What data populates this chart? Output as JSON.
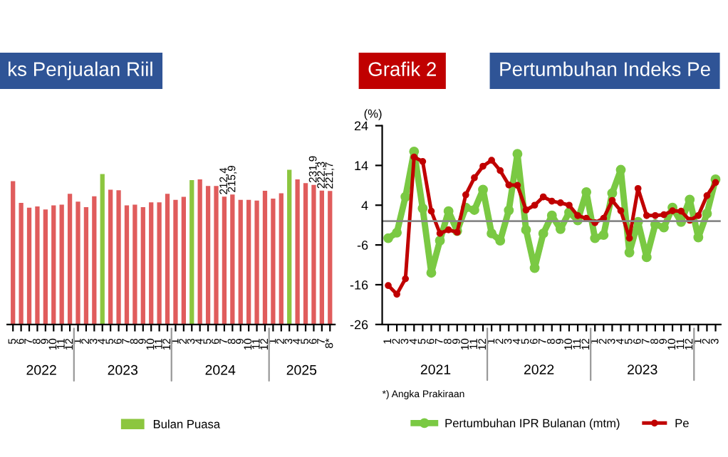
{
  "chart_data": [
    {
      "type": "bar",
      "title": "ks Penjualan Riil",
      "categories": [
        "5",
        "6",
        "7",
        "8",
        "9",
        "10",
        "11",
        "12",
        "1",
        "2",
        "3",
        "4",
        "5",
        "6",
        "7",
        "8",
        "9",
        "10",
        "11",
        "12",
        "1",
        "2",
        "3",
        "4",
        "5",
        "6",
        "7",
        "8",
        "9",
        "10",
        "11",
        "12",
        "1",
        "2",
        "3",
        "4",
        "5",
        "6",
        "7",
        "8*"
      ],
      "series": [
        {
          "color": "#e05c5c",
          "values": [
            238,
            202,
            194,
            196,
            191,
            198,
            199,
            217,
            204,
            195,
            213,
            null,
            224,
            223,
            198,
            199,
            195,
            203,
            203,
            217,
            207,
            212,
            null,
            241,
            230,
            230,
            212.4,
            215.9,
            207,
            207,
            206,
            222,
            209,
            218,
            null,
            241,
            235,
            231.9,
            222.3,
            221.7
          ],
          "value_labels": [
            null,
            null,
            null,
            null,
            null,
            null,
            null,
            null,
            null,
            null,
            null,
            null,
            null,
            null,
            null,
            null,
            null,
            null,
            null,
            null,
            null,
            null,
            null,
            null,
            null,
            null,
            "212,4",
            "215,9",
            null,
            null,
            null,
            null,
            null,
            null,
            null,
            null,
            null,
            "231,9",
            "222,3",
            "221,7"
          ]
        },
        {
          "name": "Bulan Puasa",
          "color": "#8cc63f",
          "values": [
            null,
            null,
            null,
            null,
            null,
            null,
            null,
            null,
            null,
            null,
            null,
            250,
            null,
            null,
            null,
            null,
            null,
            null,
            null,
            null,
            null,
            null,
            240,
            null,
            null,
            null,
            null,
            null,
            null,
            null,
            null,
            null,
            null,
            null,
            257,
            null,
            null,
            null,
            null,
            null
          ]
        }
      ],
      "annotations": [
        "2022",
        "2023",
        "2024",
        "2025"
      ],
      "legend": "bottom",
      "grid": false,
      "tick_labels": "x"
    },
    {
      "type": "line",
      "title": "Grafik 2",
      "subtitle": "Pertumbuhan Indeks Pe",
      "ylabel": "(%)",
      "categories": [
        "1",
        "2",
        "3",
        "4",
        "5",
        "6",
        "7",
        "8",
        "9",
        "10",
        "11",
        "12",
        "1",
        "2",
        "3",
        "4",
        "5",
        "6",
        "7",
        "8",
        "9",
        "10",
        "11",
        "12",
        "1",
        "2",
        "3",
        "4",
        "5",
        "6",
        "7",
        "8",
        "9",
        "10",
        "11",
        "12",
        "1",
        "2",
        "3"
      ],
      "series": [
        {
          "name": "Pertumbuhan IPR Bulanan (mtm)",
          "color": "#7ac943",
          "values": [
            -4.3,
            -2.9,
            6.1,
            17.5,
            3.2,
            -13,
            -4.9,
            2.5,
            -2.5,
            3.4,
            2.8,
            7.9,
            -3.1,
            -4.9,
            2.7,
            16.9,
            -2.2,
            -11.8,
            -3.1,
            1.4,
            -2,
            2.2,
            0.2,
            7.3,
            -4.3,
            -3.5,
            7,
            12.9,
            -7.9,
            -0.2,
            -9.1,
            -0.8,
            -1.6,
            3.4,
            -0.2,
            5.4,
            -4.1,
            1.9,
            10.5
          ]
        },
        {
          "name": "Pe",
          "color": "#c00000",
          "values": [
            -16.2,
            -18.4,
            -14.5,
            16.1,
            15,
            2.5,
            -3.1,
            -2.2,
            -2.8,
            6.6,
            10.9,
            13.8,
            15.3,
            12.7,
            9.1,
            9,
            2.8,
            4,
            6.1,
            5,
            4.6,
            4,
            1.4,
            0.7,
            -0.4,
            0.7,
            5.2,
            2.6,
            -4.3,
            8.2,
            1.4,
            1.4,
            1.6,
            2.6,
            2.5,
            0.2,
            1.4,
            6.4,
            9.7
          ]
        }
      ],
      "ylim": [
        -26,
        24
      ],
      "yticks": [
        -26,
        -16,
        -6,
        4,
        14,
        24
      ],
      "ref_lines": [
        {
          "axis": "y",
          "value": 0,
          "color": "#888888"
        }
      ],
      "annotations": [
        "2021",
        "2022",
        "2023"
      ],
      "xlabel": "*) Angka Prakiraan",
      "marker": "circle",
      "line_style": "solid",
      "legend": "bottom",
      "grid": false
    }
  ]
}
